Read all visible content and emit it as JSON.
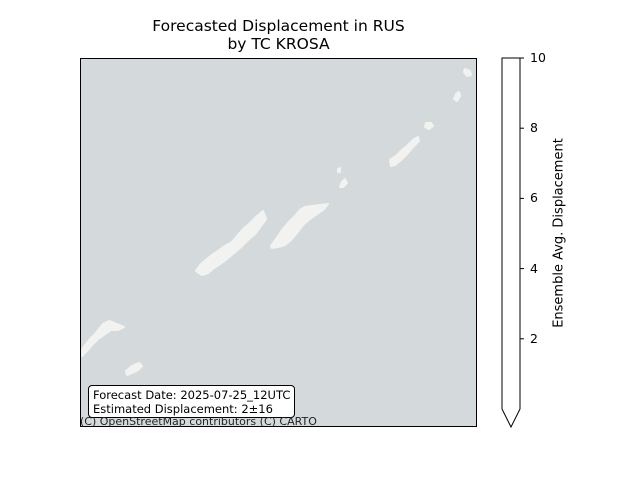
{
  "title": {
    "line1": "Forecasted Displacement in RUS",
    "line2": "by TC KROSA"
  },
  "map": {
    "ocean_color": "#d4dadc",
    "land_color": "#f2f3f0",
    "info_box": {
      "forecast_date": "Forecast Date: 2025-07-25_12UTC",
      "estimated_displacement": "Estimated Displacement: 2±16"
    },
    "attribution": "(C) OpenStreetMap contributors (C) CARTO"
  },
  "colorbar": {
    "label": "Ensemble Avg. Displacement",
    "ticks": [
      "2",
      "4",
      "6",
      "8",
      "10"
    ],
    "range": [
      0,
      10
    ],
    "extend": "min",
    "fill_color": "#ffffff"
  }
}
